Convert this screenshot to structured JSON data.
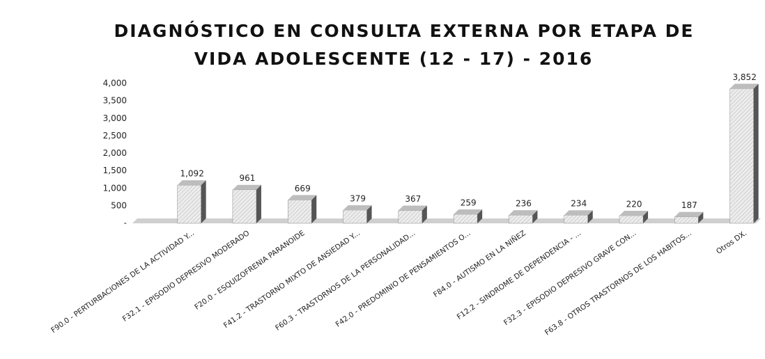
{
  "chart_data": {
    "type": "bar3d",
    "title": "DIAGNÓSTICO EN CONSULTA EXTERNA  POR ETAPA DE",
    "subtitle": "VIDA  ADOLESCENTE (12 - 17) - 2016",
    "categories": [
      "F90.0 - PERTURBACIONES DE LA ACTIVIDAD Y...",
      "F32.1 - EPISODIO DEPRESIVO MODERADO",
      "F20.0 - ESQUIZOFRENIA PARANOIDE",
      "F41.2 - TRASTORNO MIXTO DE ANSIEDAD Y...",
      "F60.3 - TRASTORNOS DE LA PERSONALIDAD...",
      "F42.0 - PREDOMINIO DE PENSAMIENTOS O...",
      "F84.0 - AUTISMO EN LA NIÑEZ",
      "F12.2 - SINDROME DE DEPENDENCIA - ...",
      "F32.3 - EPISODIO DEPRESIVO GRAVE CON...",
      "F63.8 - OTROS TRASTORNOS DE LOS HABITOS...",
      "Otros DX."
    ],
    "values": [
      1092,
      961,
      669,
      379,
      367,
      259,
      236,
      234,
      220,
      187,
      3852
    ],
    "value_labels": [
      "1,092",
      "961",
      "669",
      "379",
      "367",
      "259",
      "236",
      "234",
      "220",
      "187",
      "3,852"
    ],
    "color": "#e4e4e4",
    "ylim": [
      0,
      4000
    ],
    "yticks": [
      {
        "value": 0,
        "label": "-"
      },
      500,
      {
        "value": 1000,
        "label": "1,000"
      },
      {
        "value": 1500,
        "label": "1,500"
      },
      {
        "value": 2000,
        "label": "2,000"
      },
      {
        "value": 2500,
        "label": "2,500"
      },
      {
        "value": 3000,
        "label": "3,000"
      },
      {
        "value": 3500,
        "label": "3,500"
      },
      {
        "value": 4000,
        "label": "4,000"
      }
    ],
    "grid": false
  }
}
